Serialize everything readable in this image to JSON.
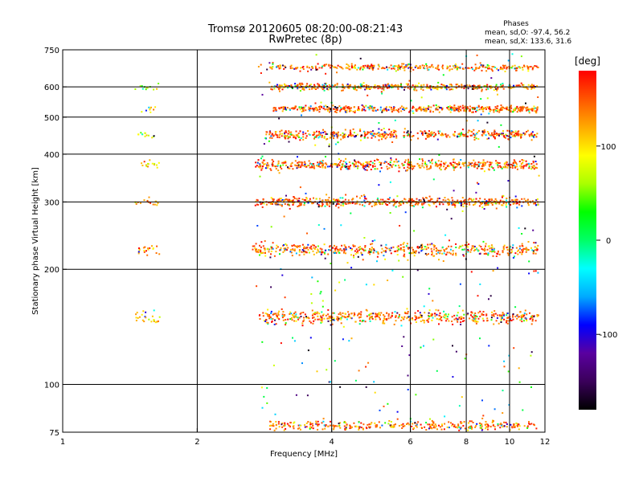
{
  "header": {
    "title_line1": "Tromsø 20120605 08:20:00-08:21:43",
    "title_line2": "RwPretec (8p)",
    "phases_title": "Phases",
    "phases_o": "mean, sd,O: -97.4, 56.2",
    "phases_x": "mean, sd,X: 133.6, 31.6"
  },
  "colorbar": {
    "unit_label": "[deg]",
    "ticks": [
      {
        "label": "100",
        "value": 100
      },
      {
        "label": "0",
        "value": 0
      },
      {
        "label": "-100",
        "value": -100
      }
    ],
    "range": [
      -180,
      180
    ],
    "colormap": [
      "#000000",
      "#3a005a",
      "#5a00a0",
      "#0000ff",
      "#00aaff",
      "#00ffff",
      "#00ff66",
      "#00ff00",
      "#aaff00",
      "#ffff00",
      "#ffaa00",
      "#ff5500",
      "#ff0000"
    ]
  },
  "chart_data": {
    "type": "scatter",
    "title": "Tromsø 20120605 08:20:00-08:21:43",
    "subtitle": "RwPretec (8p)",
    "xlabel": "Frequency [MHz]",
    "ylabel": "Stationary phase Virtual Height [km]",
    "x_scale": "log",
    "y_scale": "log",
    "xlim": [
      1,
      12
    ],
    "ylim": [
      75,
      750
    ],
    "x_ticks": [
      {
        "label": "1",
        "value": 1
      },
      {
        "label": "2",
        "value": 2
      },
      {
        "label": "4",
        "value": 4
      },
      {
        "label": "6",
        "value": 6
      },
      {
        "label": "8",
        "value": 8
      },
      {
        "label": "10",
        "value": 10
      },
      {
        "label": "12",
        "value": 12
      }
    ],
    "y_ticks": [
      {
        "label": "750",
        "value": 750
      },
      {
        "label": "600",
        "value": 600
      },
      {
        "label": "500",
        "value": 500
      },
      {
        "label": "400",
        "value": 400
      },
      {
        "label": "300",
        "value": 300
      },
      {
        "label": "200",
        "value": 200
      },
      {
        "label": "100",
        "value": 100
      },
      {
        "label": "75",
        "value": 75
      }
    ],
    "grid_x": [
      2,
      4,
      6,
      8,
      10
    ],
    "grid_y": [
      600,
      500,
      400,
      300,
      200,
      100
    ],
    "bands": [
      {
        "height": 150,
        "freq_range": [
          2.75,
          11.6
        ],
        "density": 0.9,
        "phase_mean": 140,
        "spread": 4
      },
      {
        "height": 225,
        "freq_range": [
          2.65,
          11.6
        ],
        "density": 0.85,
        "phase_mean": 140,
        "spread": 4
      },
      {
        "height": 300,
        "freq_range": [
          2.7,
          11.6
        ],
        "density": 0.9,
        "phase_mean": 145,
        "spread": 3
      },
      {
        "height": 375,
        "freq_range": [
          2.7,
          11.6
        ],
        "density": 0.9,
        "phase_mean": 145,
        "spread": 3
      },
      {
        "height": 450,
        "freq_range": [
          2.85,
          11.6
        ],
        "density": 0.85,
        "phase_mean": 145,
        "spread": 3
      },
      {
        "height": 525,
        "freq_range": [
          2.95,
          11.6
        ],
        "density": 0.85,
        "phase_mean": 145,
        "spread": 2
      },
      {
        "height": 600,
        "freq_range": [
          2.9,
          11.6
        ],
        "density": 0.75,
        "phase_mean": 140,
        "spread": 2
      },
      {
        "height": 675,
        "freq_range": [
          2.9,
          11.6
        ],
        "density": 0.6,
        "phase_mean": 140,
        "spread": 2
      },
      {
        "height": 78,
        "freq_range": [
          2.9,
          11.6
        ],
        "density": 0.6,
        "phase_mean": 140,
        "spread": 3
      },
      {
        "height": 150,
        "freq_range": [
          1.45,
          1.65
        ],
        "density": 0.5,
        "phase_mean": 110,
        "spread": 4
      },
      {
        "height": 225,
        "freq_range": [
          1.45,
          1.65
        ],
        "density": 0.4,
        "phase_mean": 120,
        "spread": 3
      },
      {
        "height": 300,
        "freq_range": [
          1.45,
          1.65
        ],
        "density": 0.35,
        "phase_mean": 120,
        "spread": 2
      },
      {
        "height": 375,
        "freq_range": [
          1.5,
          1.65
        ],
        "density": 0.4,
        "phase_mean": 110,
        "spread": 2
      },
      {
        "height": 450,
        "freq_range": [
          1.45,
          1.62
        ],
        "density": 0.3,
        "phase_mean": 90,
        "spread": 2
      },
      {
        "height": 525,
        "freq_range": [
          1.5,
          1.62
        ],
        "density": 0.3,
        "phase_mean": 100,
        "spread": 2
      },
      {
        "height": 600,
        "freq_range": [
          1.45,
          1.65
        ],
        "density": 0.25,
        "phase_mean": 60,
        "spread": 2
      }
    ]
  }
}
